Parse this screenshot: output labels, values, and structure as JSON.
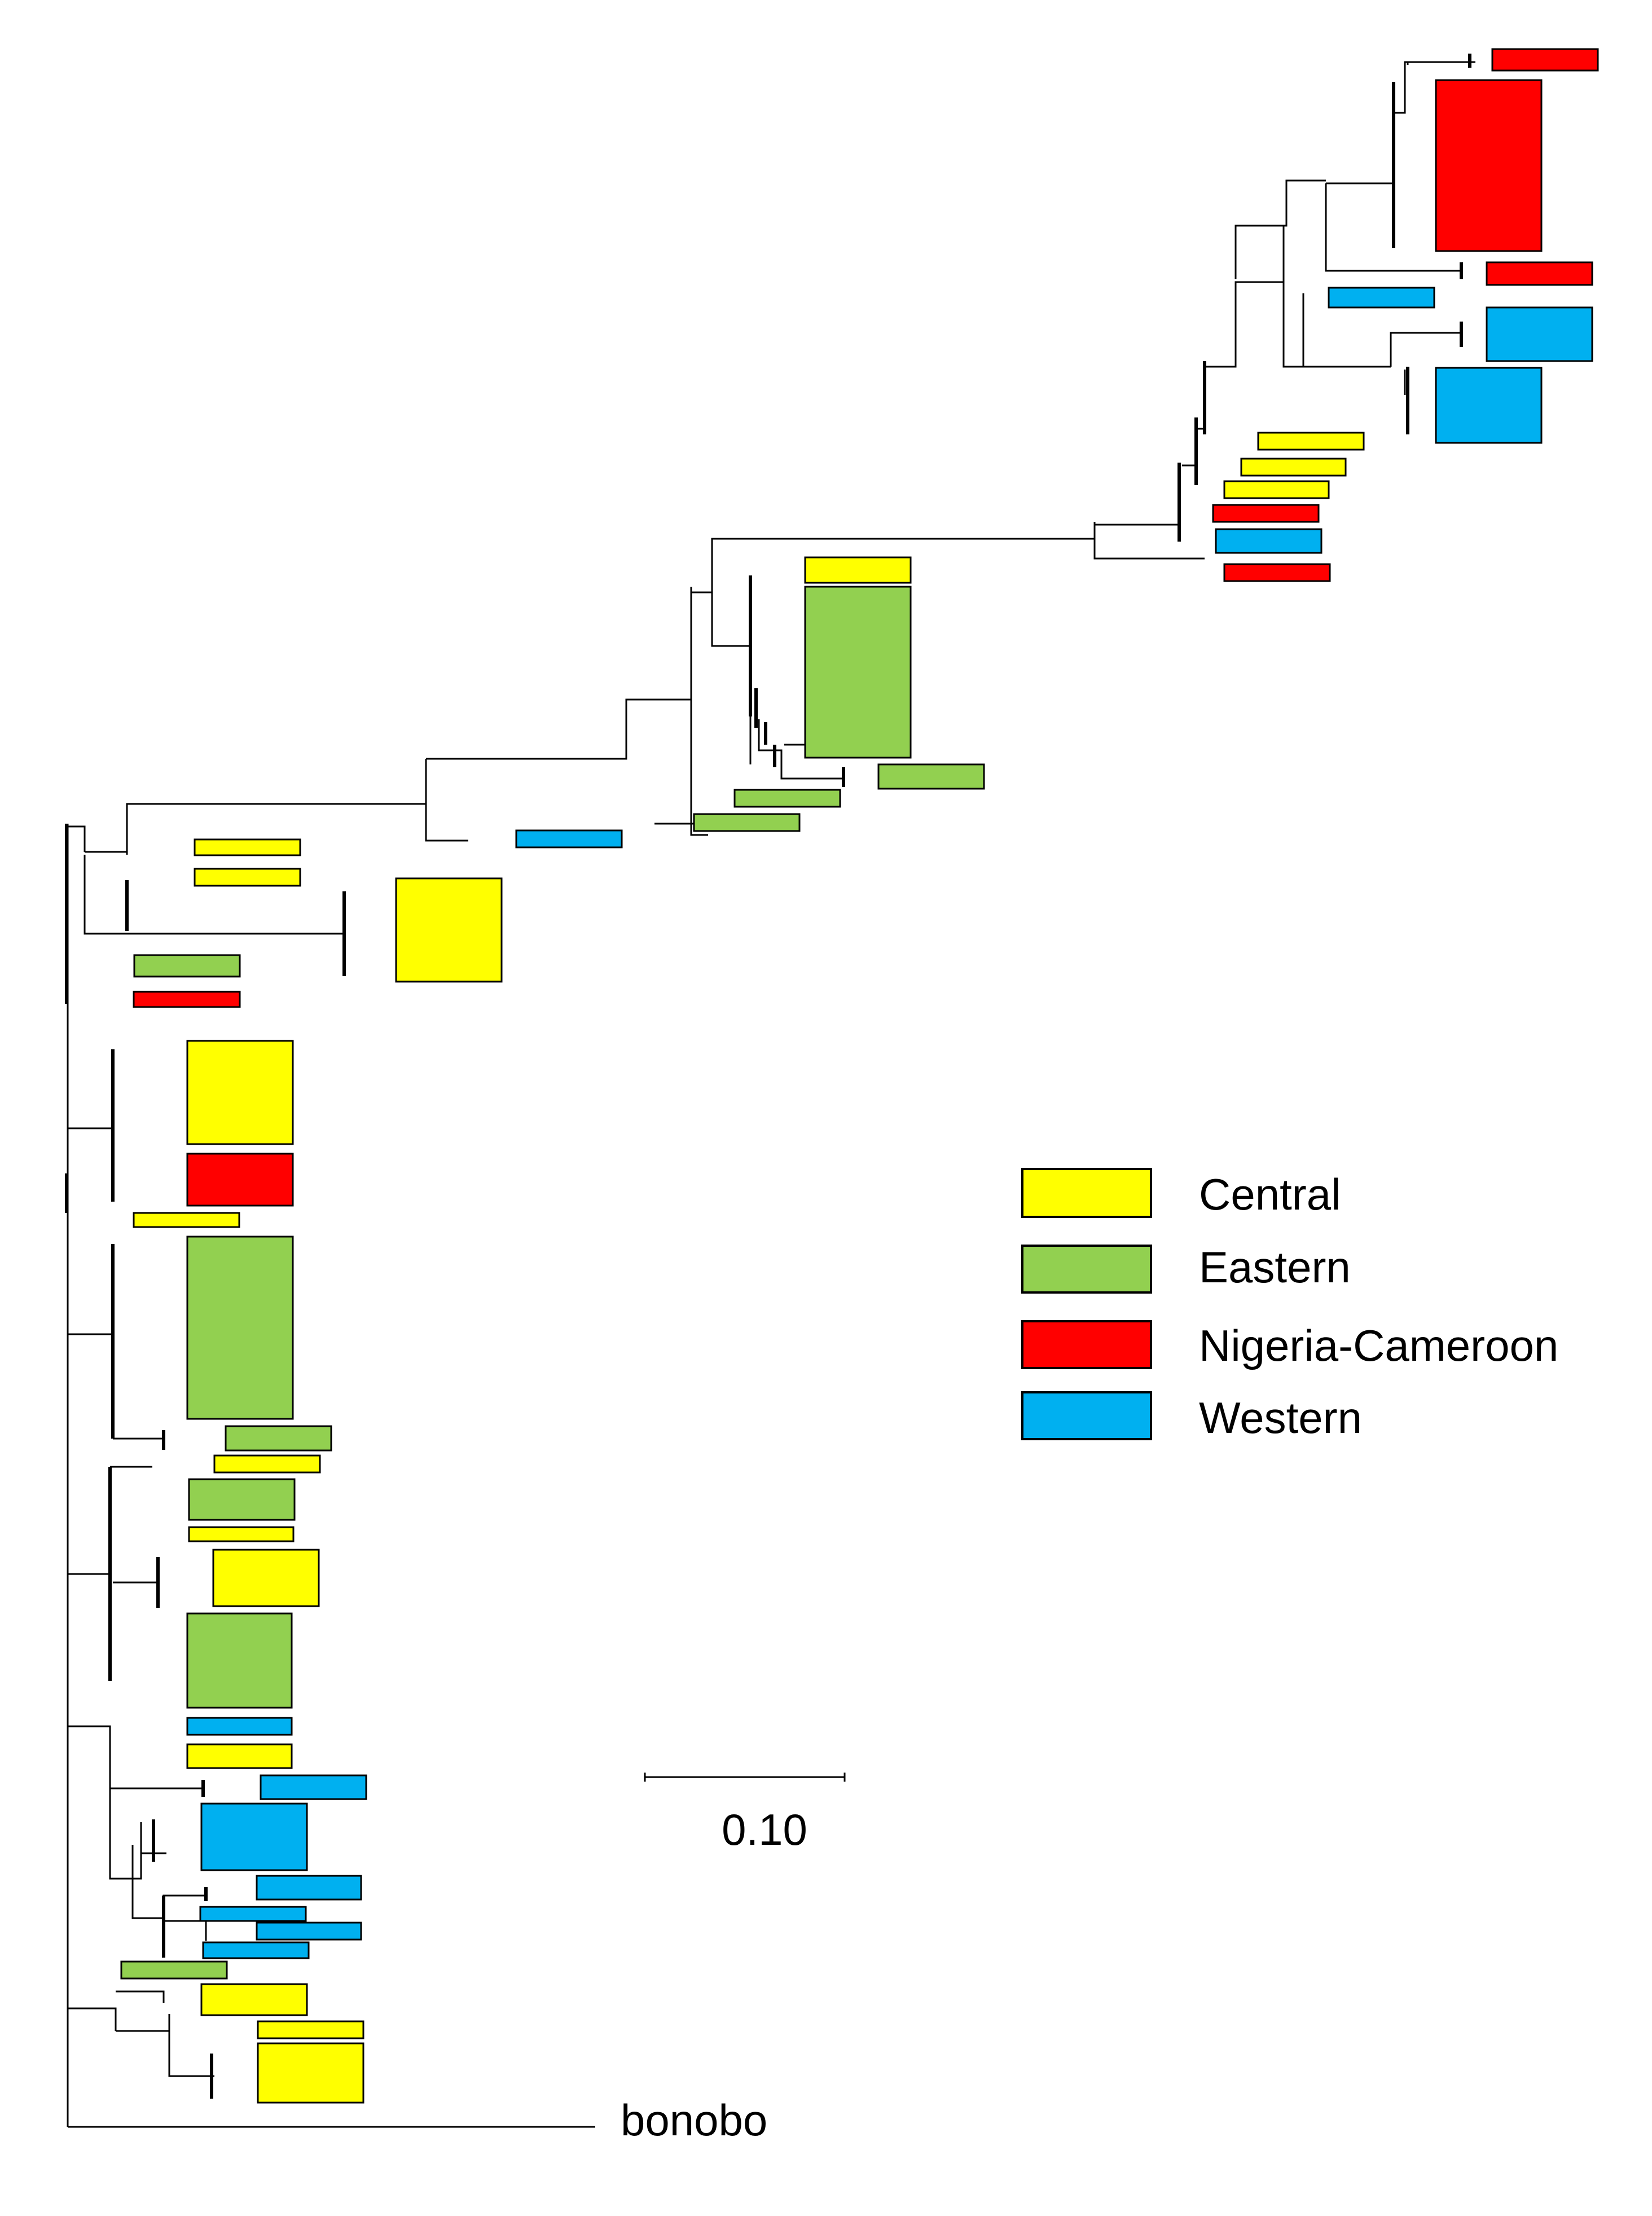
{
  "legend": {
    "items": [
      {
        "label": "Central",
        "color": "#FFFF00"
      },
      {
        "label": "Eastern",
        "color": "#92D050"
      },
      {
        "label": "Nigeria-Cameroon",
        "color": "#FF0000"
      },
      {
        "label": "Western",
        "color": "#00B0F0"
      }
    ]
  },
  "scale_bar": {
    "label": "0.10"
  },
  "outgroup": {
    "label": "bonobo"
  }
}
